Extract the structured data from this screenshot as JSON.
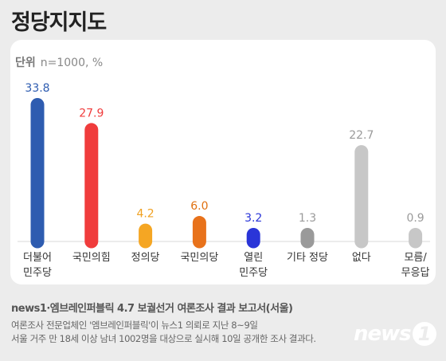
{
  "title": "정당지지도",
  "unit_label": "단위",
  "unit_value": "n=1000, %",
  "chart_data": {
    "type": "bar",
    "title": "정당지지도",
    "ylabel": "",
    "xlabel": "",
    "ylim": [
      0,
      33.8
    ],
    "grid": false,
    "categories": [
      [
        "더불어",
        "민주당"
      ],
      [
        "국민의힘"
      ],
      [
        "정의당"
      ],
      [
        "국민의당"
      ],
      [
        "열린",
        "민주당"
      ],
      [
        "기타 정당"
      ],
      [
        "없다"
      ],
      [
        "모름/",
        "무응답"
      ]
    ],
    "values": [
      33.8,
      27.9,
      4.2,
      6.0,
      3.2,
      1.3,
      22.7,
      0.9
    ],
    "value_labels": [
      "33.8",
      "27.9",
      "4.2",
      "6.0",
      "3.2",
      "1.3",
      "22.7",
      "0.9"
    ],
    "colors": [
      "#2e5cb0",
      "#f03c3c",
      "#f5a623",
      "#e8721b",
      "#2a35d8",
      "#9a9a9a",
      "#c7c7c7",
      "#c7c7c7"
    ],
    "label_colors": [
      "#2e5cb0",
      "#f03c3c",
      "#f0a020",
      "#e07010",
      "#2a35d8",
      "#9a9a9a",
      "#9a9a9a",
      "#9a9a9a"
    ]
  },
  "footer": {
    "title": "news1·엠브레인퍼블릭 4.7 보궐선거 여론조사 결과 보고서(서울)",
    "line1": "여론조사 전문업체인 '엠브레인퍼블릭'이 뉴스1 의뢰로 지난 8~9일",
    "line2": "서울 거주 만 18세 이상 남녀 1002명을 대상으로 실시해 10일 공개한 조사 결과다."
  },
  "logo": {
    "text": "news",
    "number": "1"
  }
}
